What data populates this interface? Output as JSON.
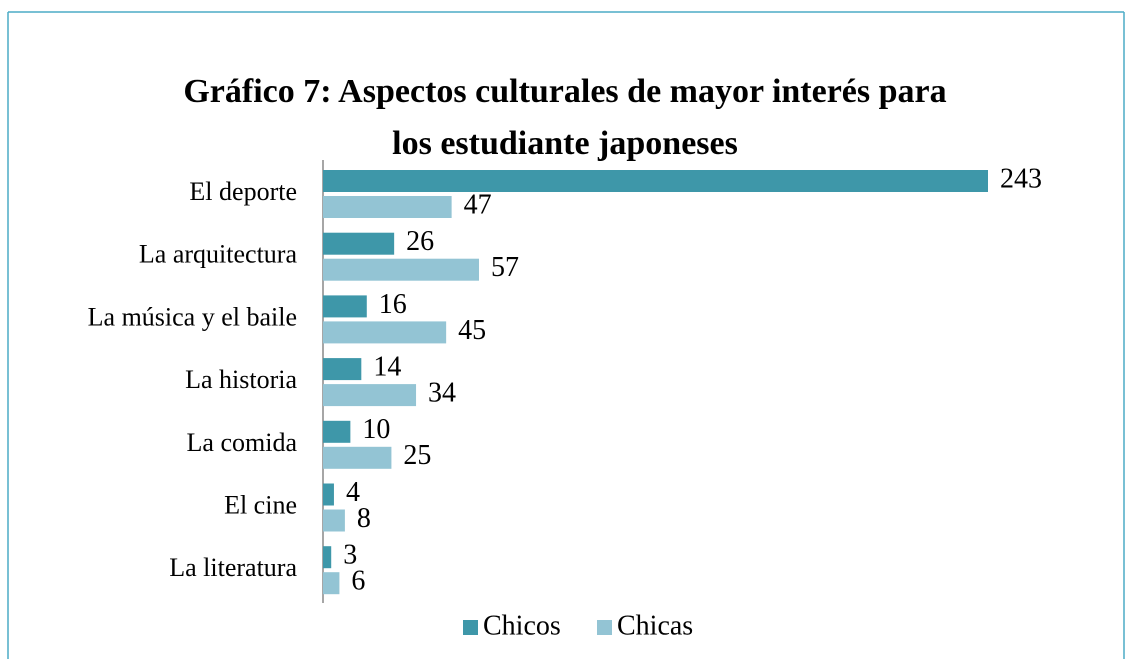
{
  "chart_data": {
    "type": "hbar",
    "title": "Gráfico 7: Aspectos culturales de mayor interés para los estudiante japoneses",
    "categories": [
      "El deporte",
      "La arquitectura",
      "La música y el baile",
      "La historia",
      "La comida",
      "El cine",
      "La literatura"
    ],
    "series": [
      {
        "name": "Chicos",
        "color": "#3e97a9",
        "values": [
          243,
          26,
          16,
          14,
          10,
          4,
          3
        ]
      },
      {
        "name": "Chicas",
        "color": "#93c4d4",
        "values": [
          47,
          57,
          45,
          34,
          25,
          8,
          6
        ]
      }
    ],
    "xlim": [
      0,
      243
    ],
    "legend": "bottom"
  }
}
